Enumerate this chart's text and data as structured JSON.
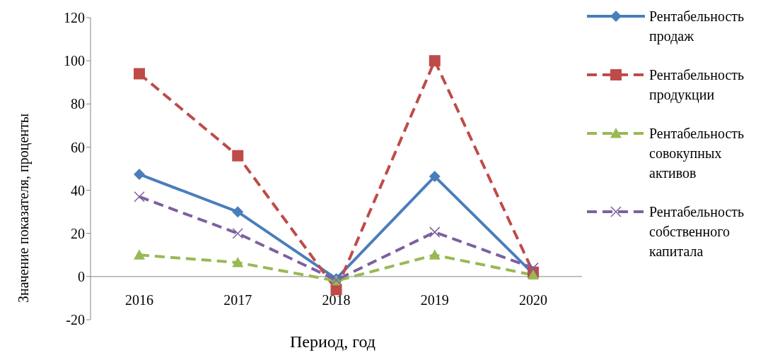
{
  "chart_data": {
    "type": "line",
    "xlabel": "Период, год",
    "ylabel": "Значение показателя, проценты",
    "categories": [
      "2016",
      "2017",
      "2018",
      "2019",
      "2020"
    ],
    "series": [
      {
        "name": "Рентабельность продаж",
        "color": "#4a7ebb",
        "values": [
          47.4,
          30,
          -1,
          46.4,
          1.3
        ],
        "marker": "diamond",
        "line_style": "solid"
      },
      {
        "name": "Рентабельность продукции",
        "color": "#be4b48",
        "values": [
          94,
          56,
          -6,
          100,
          2
        ],
        "marker": "square",
        "line_style": "dashed"
      },
      {
        "name": "Рентабельность совокупных активов",
        "color": "#98b954",
        "values": [
          10,
          6.5,
          -2,
          10,
          0.7
        ],
        "marker": "triangle",
        "line_style": "dashed"
      },
      {
        "name": "Рентабельность собственного капитала",
        "color": "#7d60a0",
        "values": [
          37,
          20,
          -1.6,
          20.6,
          4
        ],
        "marker": "cross",
        "line_style": "dashed"
      }
    ],
    "ylim": [
      -20,
      120
    ],
    "yticks": [
      -20,
      0,
      20,
      40,
      60,
      80,
      100,
      120
    ],
    "legend": "right"
  }
}
